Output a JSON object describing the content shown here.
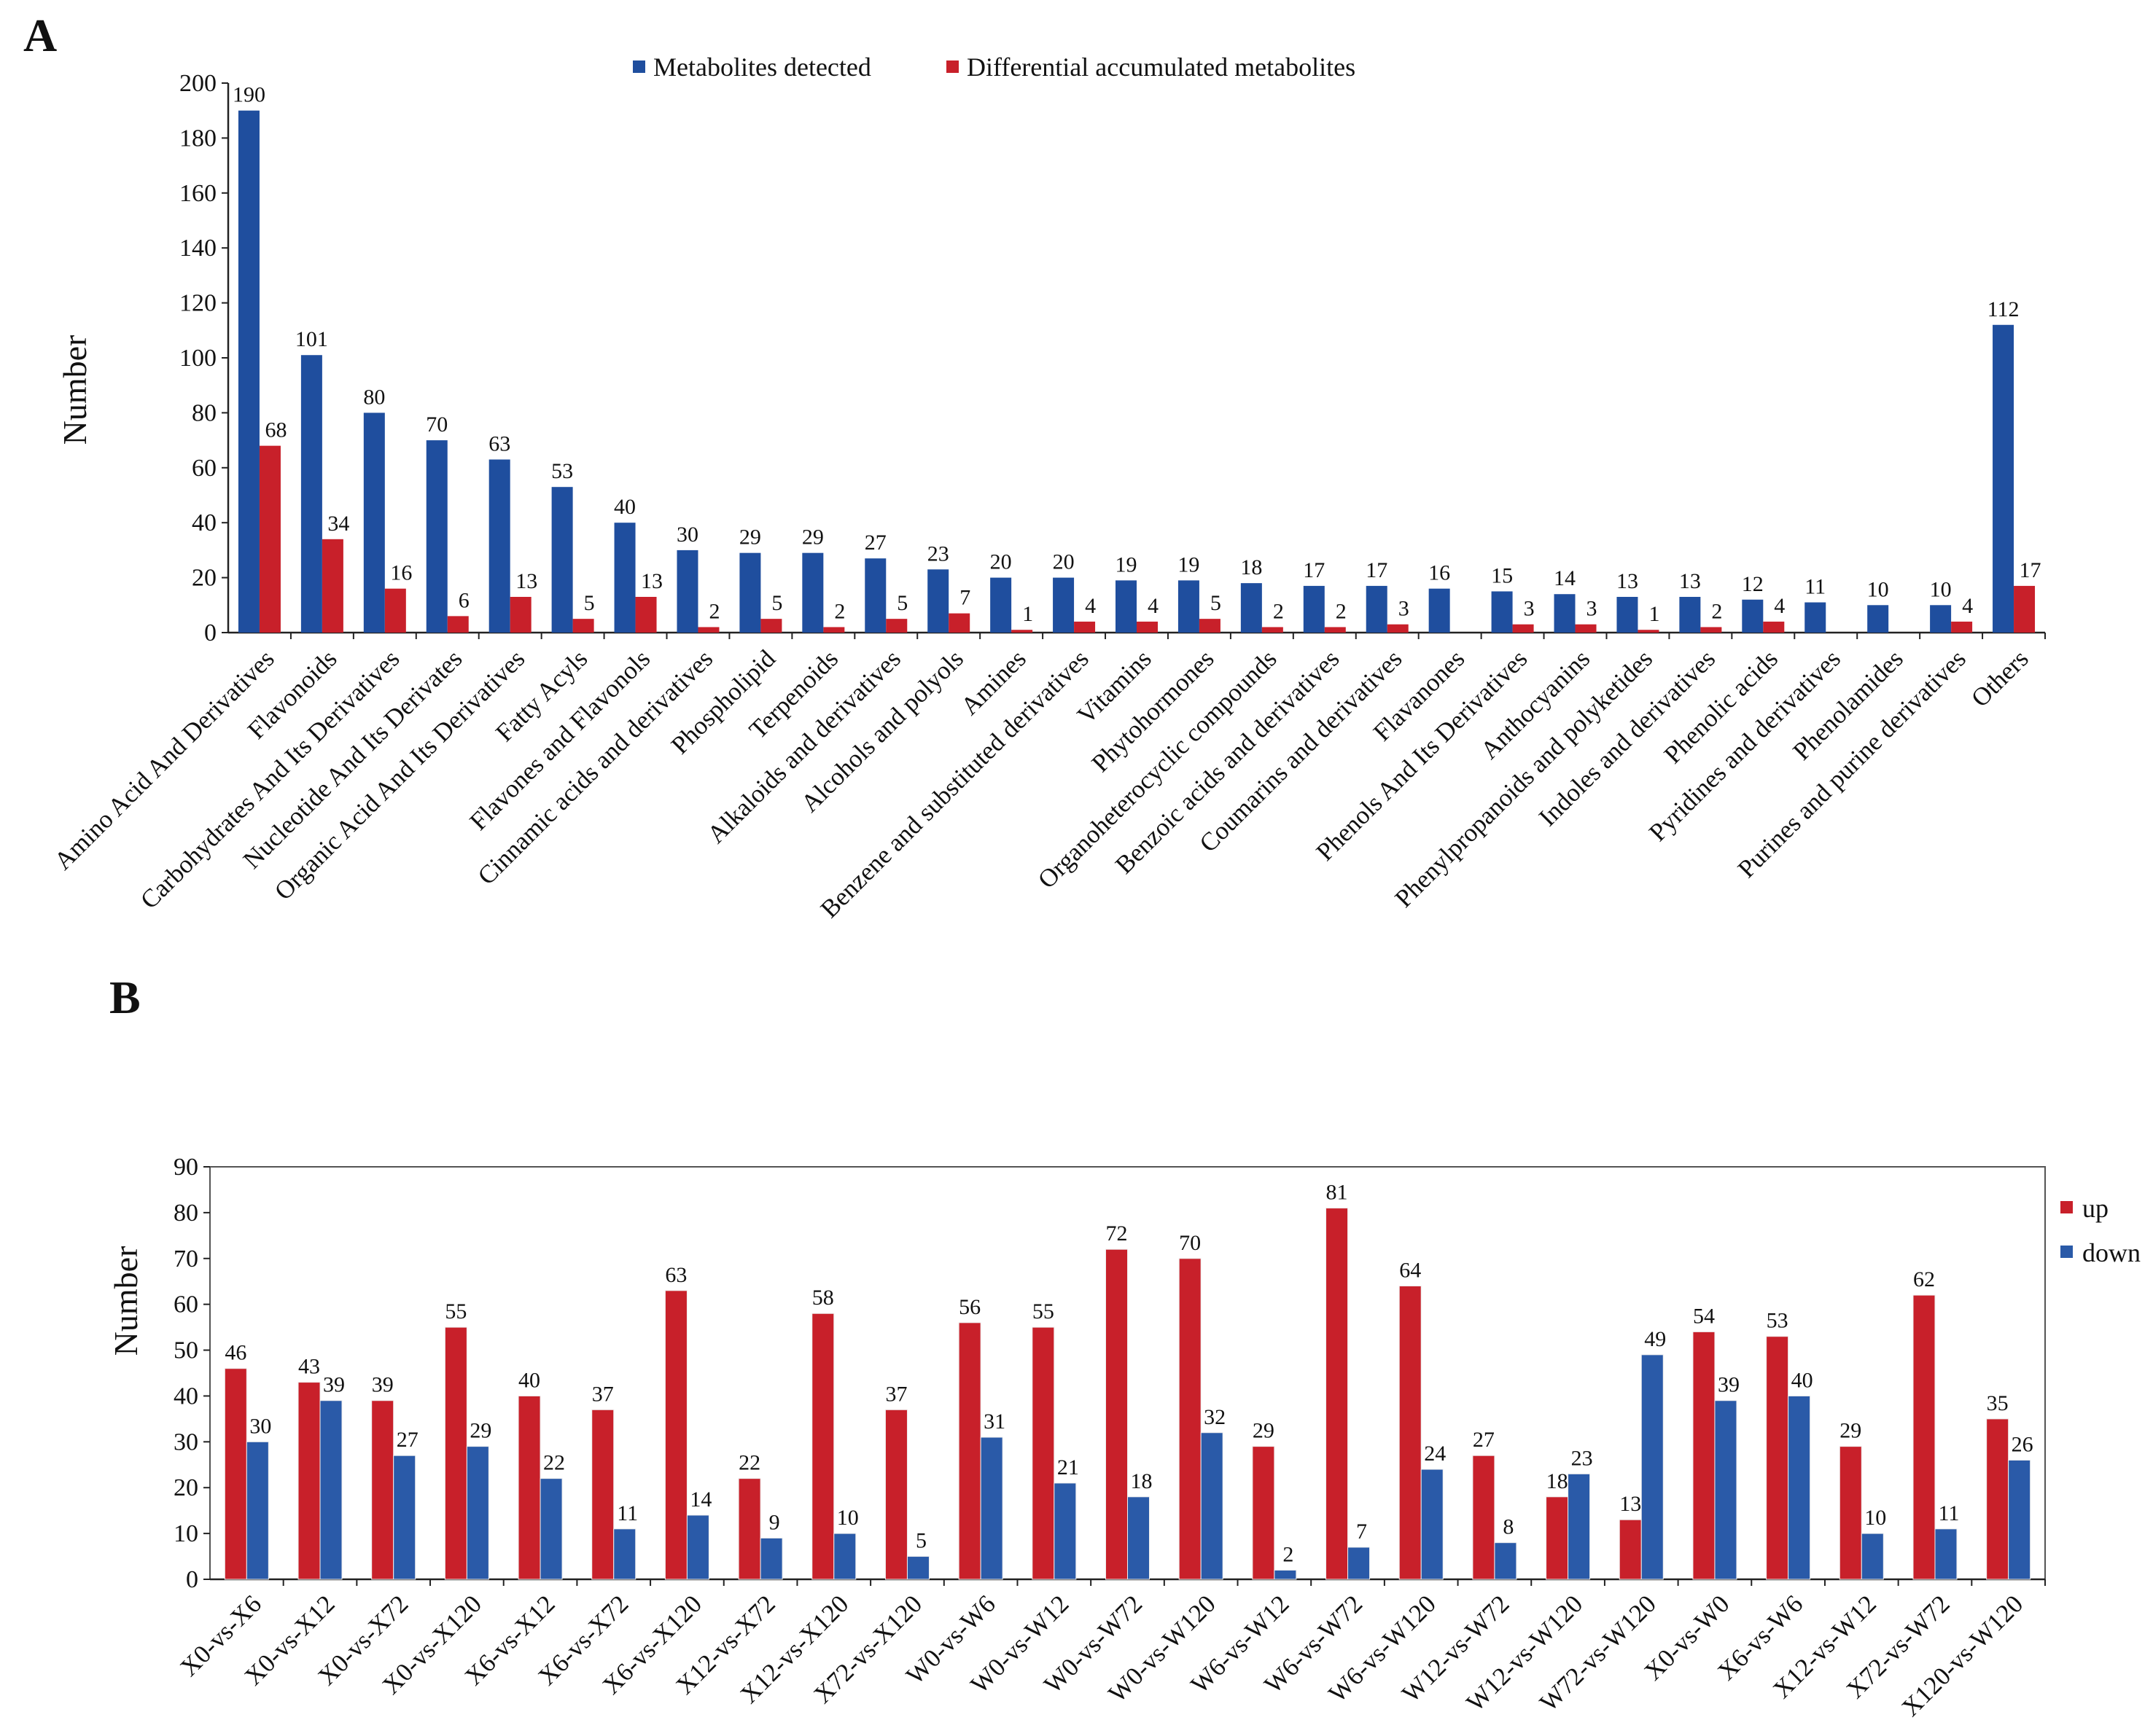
{
  "chart_data": [
    {
      "id": "A",
      "panel_label": "A",
      "type": "bar",
      "title": "",
      "xlabel": "",
      "ylabel": "Number",
      "ylim": [
        0,
        200
      ],
      "yticks": [
        0,
        20,
        40,
        60,
        80,
        100,
        120,
        140,
        160,
        180,
        200
      ],
      "legend_position": "top-center",
      "categories": [
        "Amino Acid And Derivatives",
        "Flavonoids",
        "Carbohydrates And Its Derivatives",
        "Nucleotide And Its Derivates",
        "Organic Acid And Its Derivatives",
        "Fatty Acyls",
        "Flavones and Flavonols",
        "Cinnamic acids and derivatives",
        "Phospholipid",
        "Terpenoids",
        "Alkaloids and derivatives",
        "Alcohols and polyols",
        "Amines",
        "Benzene and substituted derivatives",
        "Vitamins",
        "Phytohormones",
        "Organoheterocyclic compounds",
        "Benzoic acids and derivatives",
        "Coumarins and derivatives",
        "Flavanones",
        "Phenols And Its Derivatives",
        "Anthocyanins",
        "Phenylpropanoids and polyketides",
        "Indoles and derivatives",
        "Phenolic acids",
        "Pyridines and derivatives",
        "Phenolamides",
        "Purines and purine derivatives",
        "Others"
      ],
      "series": [
        {
          "name": "Metabolites detected",
          "color": "#1f4e9e",
          "values": [
            190,
            101,
            80,
            70,
            63,
            53,
            40,
            30,
            29,
            29,
            27,
            23,
            20,
            20,
            19,
            19,
            18,
            17,
            17,
            16,
            15,
            14,
            13,
            13,
            12,
            11,
            10,
            10,
            112
          ]
        },
        {
          "name": "Differential accumulated metabolites",
          "color": "#c8202a",
          "values": [
            68,
            34,
            16,
            6,
            13,
            5,
            13,
            2,
            5,
            2,
            5,
            7,
            1,
            4,
            4,
            5,
            2,
            2,
            3,
            null,
            3,
            3,
            1,
            2,
            4,
            null,
            null,
            4,
            17
          ]
        }
      ]
    },
    {
      "id": "B",
      "panel_label": "B",
      "type": "bar",
      "title": "",
      "xlabel": "",
      "ylabel": "Number",
      "ylim": [
        0,
        90
      ],
      "yticks": [
        0,
        10,
        20,
        30,
        40,
        50,
        60,
        70,
        80,
        90
      ],
      "legend_position": "right",
      "categories": [
        "X0-vs-X6",
        "X0-vs-X12",
        "X0-vs-X72",
        "X0-vs-X120",
        "X6-vs-X12",
        "X6-vs-X72",
        "X6-vs-X120",
        "X12-vs-X72",
        "X12-vs-X120",
        "X72-vs-X120",
        "W0-vs-W6",
        "W0-vs-W12",
        "W0-vs-W72",
        "W0-vs-W120",
        "W6-vs-W12",
        "W6-vs-W72",
        "W6-vs-W120",
        "W12-vs-W72",
        "W12-vs-W120",
        "W72-vs-W120",
        "X0-vs-W0",
        "X6-vs-W6",
        "X12-vs-W12",
        "X72-vs-W72",
        "X120-vs-W120"
      ],
      "series": [
        {
          "name": "up",
          "color": "#c8202a",
          "values": [
            46,
            43,
            39,
            55,
            40,
            37,
            63,
            22,
            58,
            37,
            56,
            55,
            72,
            70,
            29,
            81,
            64,
            27,
            18,
            13,
            54,
            53,
            29,
            62,
            35
          ]
        },
        {
          "name": "down",
          "color": "#2a5aa8",
          "values": [
            30,
            39,
            27,
            29,
            22,
            11,
            14,
            9,
            10,
            5,
            31,
            21,
            18,
            32,
            2,
            7,
            24,
            8,
            23,
            49,
            39,
            40,
            10,
            11,
            26
          ]
        }
      ]
    }
  ]
}
